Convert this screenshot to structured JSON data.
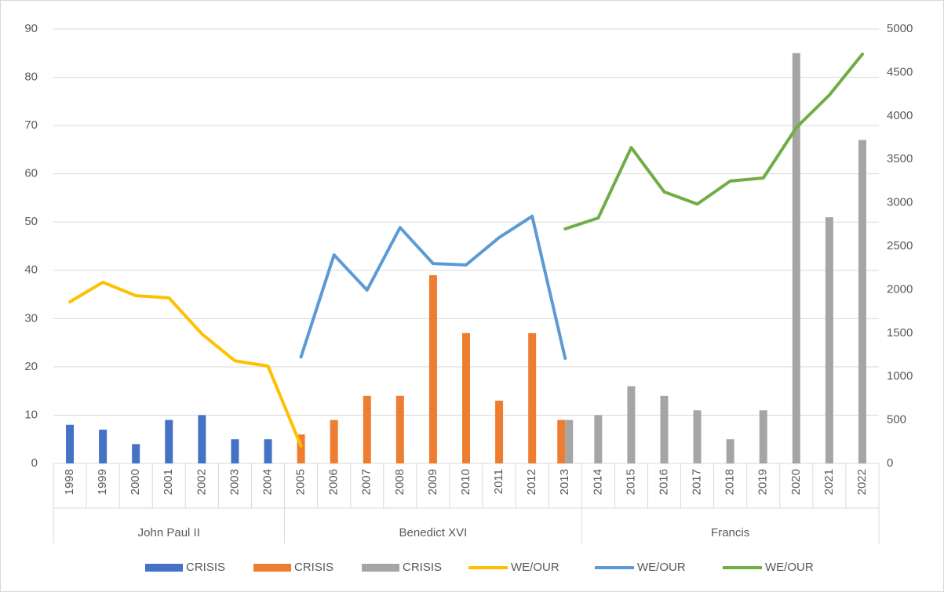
{
  "chart_data": {
    "type": "bar-line",
    "categories": [
      "1998",
      "1999",
      "2000",
      "2001",
      "2002",
      "2003",
      "2004",
      "2005",
      "2006",
      "2007",
      "2008",
      "2009",
      "2010",
      "2011",
      "2012",
      "2013",
      "2014",
      "2015",
      "2016",
      "2017",
      "2018",
      "2019",
      "2020",
      "2021",
      "2022"
    ],
    "groups": [
      {
        "label": "John Paul II",
        "span": 7
      },
      {
        "label": "Benedict XVI",
        "span": 9
      },
      {
        "label": "Francis",
        "span": 9
      }
    ],
    "series": [
      {
        "name": "CRISIS",
        "type": "bar",
        "color": "#4472c4",
        "values": [
          8,
          7,
          4,
          9,
          10,
          5,
          5,
          null,
          null,
          null,
          null,
          null,
          null,
          null,
          null,
          null,
          null,
          null,
          null,
          null,
          null,
          null,
          null,
          null,
          null
        ]
      },
      {
        "name": "CRISIS",
        "type": "bar",
        "color": "#ed7d31",
        "values": [
          null,
          null,
          null,
          null,
          null,
          null,
          null,
          6,
          9,
          14,
          14,
          39,
          27,
          13,
          27,
          9,
          null,
          null,
          null,
          null,
          null,
          null,
          null,
          null,
          null
        ]
      },
      {
        "name": "CRISIS",
        "type": "bar",
        "color": "#a5a5a5",
        "values": [
          null,
          null,
          null,
          null,
          null,
          null,
          null,
          null,
          null,
          null,
          null,
          null,
          null,
          null,
          null,
          9,
          10,
          16,
          14,
          11,
          5,
          11,
          85,
          51,
          67
        ]
      },
      {
        "name": "WE/OUR",
        "type": "line",
        "axis": "y2",
        "color": "#ffc000",
        "values": [
          1860,
          2085,
          1930,
          1905,
          1490,
          1180,
          1120,
          200,
          null,
          null,
          null,
          null,
          null,
          null,
          null,
          null,
          null,
          null,
          null,
          null,
          null,
          null,
          null,
          null,
          null
        ]
      },
      {
        "name": "WE/OUR",
        "type": "line",
        "axis": "y2",
        "color": "#5b9bd5",
        "values": [
          null,
          null,
          null,
          null,
          null,
          null,
          null,
          1225,
          2400,
          1995,
          2715,
          2300,
          2285,
          2600,
          2845,
          1210,
          null,
          null,
          null,
          null,
          null,
          null,
          null,
          null,
          null
        ]
      },
      {
        "name": "WE/OUR",
        "type": "line",
        "axis": "y2",
        "color": "#70ad47",
        "values": [
          null,
          null,
          null,
          null,
          null,
          null,
          null,
          null,
          null,
          null,
          null,
          null,
          null,
          null,
          null,
          2700,
          2825,
          3635,
          3125,
          2985,
          3250,
          3285,
          3865,
          4240,
          4710
        ]
      }
    ],
    "ylim": [
      0,
      90
    ],
    "yticks": [
      0,
      10,
      20,
      30,
      40,
      50,
      60,
      70,
      80,
      90
    ],
    "y2lim": [
      0,
      5000
    ],
    "y2ticks": [
      0,
      500,
      1000,
      1500,
      2000,
      2500,
      3000,
      3500,
      4000,
      4500,
      5000
    ],
    "grid": true,
    "legend": "bottom"
  }
}
